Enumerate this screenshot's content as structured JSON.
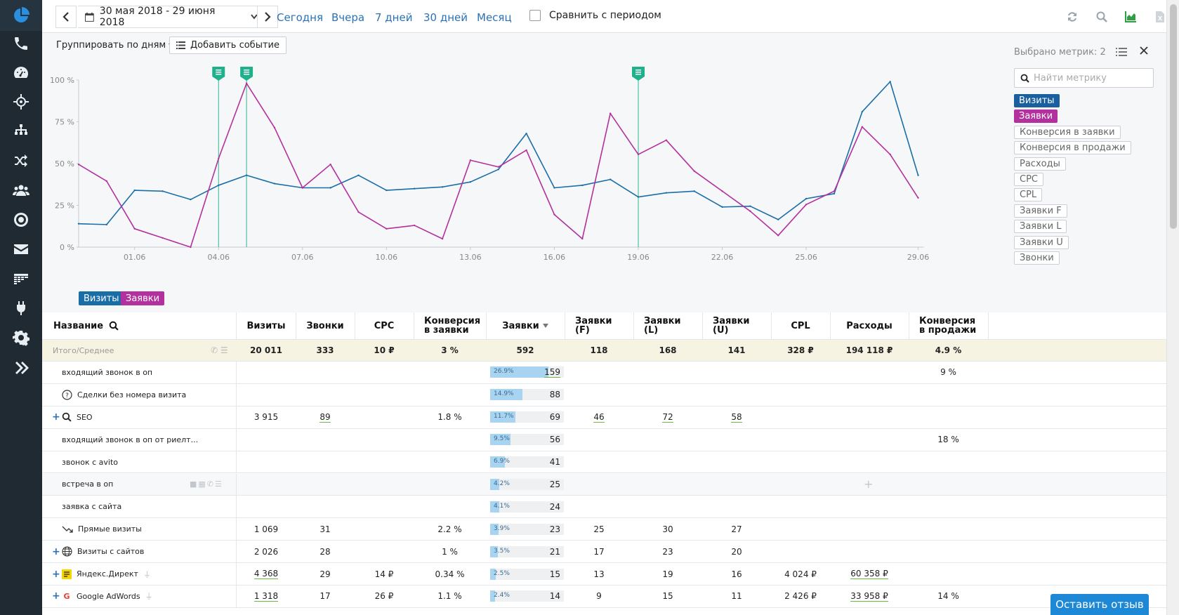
{
  "topbar": {
    "date_range": "30 мая 2018 - 29 июня 2018",
    "quick_ranges": [
      "Сегодня",
      "Вчера",
      "7 дней",
      "30 дней",
      "Месяц"
    ],
    "compare_label": "Сравнить с периодом"
  },
  "chart_controls": {
    "group_by": "Группировать по дням",
    "add_event": "Добавить событие"
  },
  "metric_panel": {
    "selected": "Выбрано метрик: 2",
    "search_placeholder": "Найти метрику",
    "metrics": [
      {
        "label": "Визиты",
        "active": true,
        "color": "#1a5f9e"
      },
      {
        "label": "Заявки",
        "active": true,
        "color": "#b3309f"
      },
      {
        "label": "Конверсия в заявки",
        "active": false
      },
      {
        "label": "Конверсия в продажи",
        "active": false
      },
      {
        "label": "Расходы",
        "active": false
      },
      {
        "label": "CPC",
        "active": false
      },
      {
        "label": "CPL",
        "active": false
      },
      {
        "label": "Заявки F",
        "active": false
      },
      {
        "label": "Заявки L",
        "active": false
      },
      {
        "label": "Заявки U",
        "active": false
      },
      {
        "label": "Звонки",
        "active": false
      }
    ]
  },
  "chart_data": {
    "type": "line",
    "y_ticks": [
      "100 %",
      "75 %",
      "50 %",
      "25 %",
      "0 %"
    ],
    "ylim": [
      0,
      100
    ],
    "x_tick_labels": [
      "01.06",
      "04.06",
      "07.06",
      "10.06",
      "13.06",
      "16.06",
      "19.06",
      "22.06",
      "25.06",
      "29.06"
    ],
    "x_tick_days": [
      2,
      5,
      8,
      11,
      14,
      17,
      20,
      23,
      26,
      30
    ],
    "event_markers_days": [
      5,
      6,
      20
    ],
    "series": [
      {
        "name": "Визиты",
        "color": "#1a6ea8",
        "values": [
          14,
          13.5,
          34,
          33.5,
          28.5,
          37,
          43,
          38,
          35.5,
          35.5,
          43,
          34,
          35,
          36,
          39,
          46.5,
          68,
          35.5,
          37,
          40.5,
          30,
          32.5,
          33.5,
          24,
          24.5,
          16.5,
          29,
          32,
          81,
          99,
          43
        ]
      },
      {
        "name": "Заявки",
        "color": "#b3309f",
        "values": [
          49.5,
          39.5,
          11,
          5.5,
          0,
          53,
          98,
          71.5,
          35.5,
          49.5,
          21,
          11,
          13,
          5,
          52,
          48,
          58,
          19.5,
          5,
          80,
          55.5,
          64,
          45.5,
          33.5,
          21.5,
          7,
          25.5,
          33.5,
          72,
          55.5,
          29.5
        ]
      }
    ],
    "legend": [
      "Визиты",
      "Заявки"
    ]
  },
  "table": {
    "headers": {
      "name": "Название",
      "visits": "Визиты",
      "calls": "Звонки",
      "cpc": "CPC",
      "conv_leads": "Конверсия в заявки",
      "leads": "Заявки",
      "leads_f": "Заявки (F)",
      "leads_l": "Заявки (L)",
      "leads_u": "Заявки (U)",
      "cpl": "CPL",
      "costs": "Расходы",
      "conv_sales": "Конверсия в продажи"
    },
    "total": {
      "name": "Итого/Среднее",
      "visits": "20 011",
      "calls": "333",
      "cpc": "10 ₽",
      "conv_leads": "3 %",
      "leads": "592",
      "leads_f": "118",
      "leads_l": "168",
      "leads_u": "141",
      "cpl": "328 ₽",
      "costs": "194 118 ₽",
      "conv_sales": "4.9 %"
    },
    "rows": [
      {
        "name": "входящий звонок в оп",
        "icon": "",
        "expand": false,
        "visits": "",
        "calls": "",
        "cpc": "",
        "conv_leads": "",
        "pct": 26.9,
        "pct_label": "26.9%",
        "leads": "159",
        "leads_f": "",
        "leads_l": "",
        "leads_u": "",
        "cpl": "",
        "costs": "",
        "conv_sales": "9 %"
      },
      {
        "name": "Сделки без номера визита",
        "icon": "question-icon",
        "expand": false,
        "visits": "",
        "calls": "",
        "cpc": "",
        "conv_leads": "",
        "pct": 14.9,
        "pct_label": "14.9%",
        "leads": "88",
        "leads_f": "",
        "leads_l": "",
        "leads_u": "",
        "cpl": "",
        "costs": "",
        "conv_sales": ""
      },
      {
        "name": "SEO",
        "icon": "search-icon",
        "expand": true,
        "visits": "3 915",
        "calls": "89",
        "cpc": "",
        "conv_leads": "1.8 %",
        "pct": 11.7,
        "pct_label": "11.7%",
        "leads": "69",
        "leads_f": "46",
        "leads_l": "72",
        "leads_u": "58",
        "cpl": "",
        "costs": "",
        "conv_sales": ""
      },
      {
        "name": "входящий звонок в оп от риелт...",
        "icon": "",
        "expand": false,
        "visits": "",
        "calls": "",
        "cpc": "",
        "conv_leads": "",
        "pct": 9.5,
        "pct_label": "9.5%",
        "leads": "56",
        "leads_f": "",
        "leads_l": "",
        "leads_u": "",
        "cpl": "",
        "costs": "",
        "conv_sales": "18 %"
      },
      {
        "name": "звонок с avito",
        "icon": "",
        "expand": false,
        "visits": "",
        "calls": "",
        "cpc": "",
        "conv_leads": "",
        "pct": 6.9,
        "pct_label": "6.9%",
        "leads": "41",
        "leads_f": "",
        "leads_l": "",
        "leads_u": "",
        "cpl": "",
        "costs": "",
        "conv_sales": ""
      },
      {
        "name": "встреча в оп",
        "icon": "",
        "expand": false,
        "visits": "",
        "calls": "",
        "cpc": "",
        "conv_leads": "",
        "pct": 4.2,
        "pct_label": "4.2%",
        "leads": "25",
        "leads_f": "",
        "leads_l": "",
        "leads_u": "",
        "cpl": "",
        "costs": "",
        "conv_sales": ""
      },
      {
        "name": "заявка с сайта",
        "icon": "",
        "expand": false,
        "visits": "",
        "calls": "",
        "cpc": "",
        "conv_leads": "",
        "pct": 4.1,
        "pct_label": "4.1%",
        "leads": "24",
        "leads_f": "",
        "leads_l": "",
        "leads_u": "",
        "cpl": "",
        "costs": "",
        "conv_sales": ""
      },
      {
        "name": "Прямые визиты",
        "icon": "direct-icon",
        "expand": false,
        "visits": "1 069",
        "calls": "31",
        "cpc": "",
        "conv_leads": "2.2 %",
        "pct": 3.9,
        "pct_label": "3.9%",
        "leads": "23",
        "leads_f": "25",
        "leads_l": "30",
        "leads_u": "27",
        "cpl": "",
        "costs": "",
        "conv_sales": ""
      },
      {
        "name": "Визиты с сайтов",
        "icon": "globe-icon",
        "expand": true,
        "visits": "2 026",
        "calls": "28",
        "cpc": "",
        "conv_leads": "1 %",
        "pct": 3.5,
        "pct_label": "3.5%",
        "leads": "21",
        "leads_f": "17",
        "leads_l": "23",
        "leads_u": "20",
        "cpl": "",
        "costs": "",
        "conv_sales": ""
      },
      {
        "name": "Яндекс.Директ",
        "icon": "yandex-direct-icon",
        "expand": true,
        "visits": "4 368",
        "calls": "29",
        "cpc": "14 ₽",
        "conv_leads": "0.34 %",
        "pct": 2.5,
        "pct_label": "2.5%",
        "leads": "15",
        "leads_f": "13",
        "leads_l": "19",
        "leads_u": "16",
        "cpl": "4 024 ₽",
        "costs": "60 358 ₽",
        "conv_sales": ""
      },
      {
        "name": "Google AdWords",
        "icon": "google-icon",
        "expand": true,
        "visits": "1 318",
        "calls": "17",
        "cpc": "26 ₽",
        "conv_leads": "1.1 %",
        "pct": 2.4,
        "pct_label": "2.4%",
        "leads": "14",
        "leads_f": "9",
        "leads_l": "15",
        "leads_u": "11",
        "cpl": "2 426 ₽",
        "costs": "33 958 ₽",
        "conv_sales": "14 %"
      }
    ]
  },
  "feedback_button": "Оставить отзыв"
}
